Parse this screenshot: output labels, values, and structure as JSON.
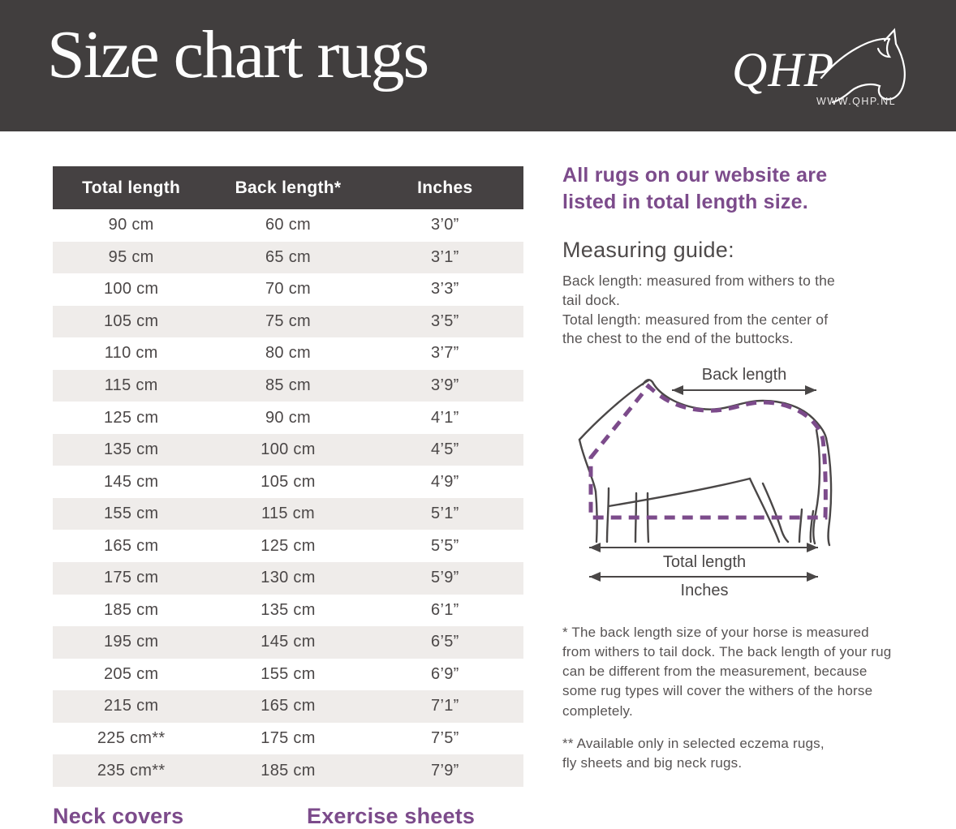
{
  "header": {
    "title": "Size chart rugs",
    "logo": {
      "brand": "QHP",
      "url_label": "WWW.QHP.NL"
    }
  },
  "table": {
    "columns": [
      "Total length",
      "Back length*",
      "Inches"
    ],
    "rows": [
      [
        "90 cm",
        "60 cm",
        "3’0”"
      ],
      [
        "95 cm",
        "65 cm",
        "3’1”"
      ],
      [
        "100 cm",
        "70 cm",
        "3’3”"
      ],
      [
        "105 cm",
        "75 cm",
        "3’5”"
      ],
      [
        "110 cm",
        "80 cm",
        "3’7”"
      ],
      [
        "115 cm",
        "85 cm",
        "3’9”"
      ],
      [
        "125 cm",
        "90 cm",
        "4’1”"
      ],
      [
        "135 cm",
        "100 cm",
        "4’5”"
      ],
      [
        "145 cm",
        "105 cm",
        "4’9”"
      ],
      [
        "155 cm",
        "115 cm",
        "5’1”"
      ],
      [
        "165 cm",
        "125 cm",
        "5’5”"
      ],
      [
        "175 cm",
        "130 cm",
        "5’9”"
      ],
      [
        "185 cm",
        "135 cm",
        "6’1”"
      ],
      [
        "195 cm",
        "145 cm",
        "6’5”"
      ],
      [
        "205 cm",
        "155 cm",
        "6’9”"
      ],
      [
        "215 cm",
        "165 cm",
        "7’1”"
      ],
      [
        "225 cm**",
        "175 cm",
        "7’5”"
      ],
      [
        "235 cm**",
        "185 cm",
        "7’9”"
      ]
    ]
  },
  "aside": {
    "intro": "All rugs on our website are\nlisted in total length size.",
    "guide_title": "Measuring guide:",
    "guide_body": "Back length: measured from withers to the\ntail dock.\nTotal length: measured from the center of\nthe chest to the end of the buttocks.",
    "diagram": {
      "back_label": "Back length",
      "total_label": "Total length",
      "inches_label": "Inches"
    },
    "footnote_single": "* The back length size of your horse is measured\nfrom withers to tail dock. The back length of your rug\ncan be different from the measurement, because\nsome rug types will cover the withers of the horse\ncompletely.",
    "footnote_double": "** Available only in selected eczema rugs,\nfly sheets and big neck rugs."
  },
  "bottom_sections": {
    "left_heading": "Neck covers",
    "right_heading": "Exercise sheets"
  },
  "colors": {
    "banner_bg": "#413e3e",
    "table_header_bg": "#454142",
    "row_alt_bg": "#efecea",
    "text_dark": "#4b4747",
    "accent_purple": "#7c4b8b"
  }
}
